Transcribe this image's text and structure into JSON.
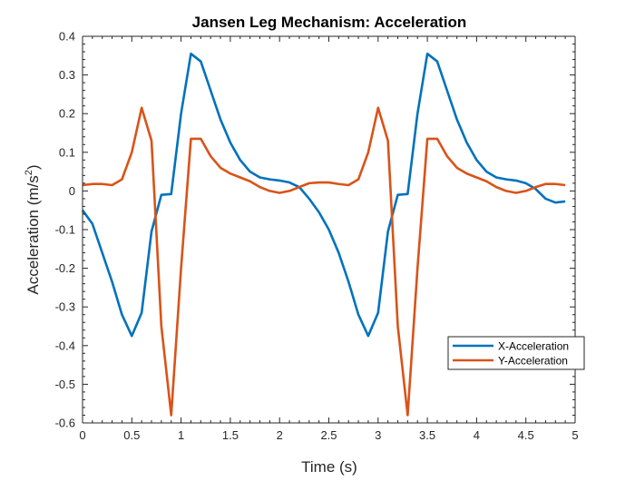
{
  "chart_data": {
    "type": "line",
    "title": "Jansen Leg Mechanism: Acceleration",
    "xlabel": "Time (s)",
    "ylabel": "Acceleration (m/s²)",
    "ylabel_main": "Acceleration (m/s",
    "ylabel_sup": "2",
    "ylabel_end": ")",
    "xlim": [
      0,
      5
    ],
    "ylim": [
      -0.6,
      0.4
    ],
    "x_ticks": [
      0,
      0.5,
      1,
      1.5,
      2,
      2.5,
      3,
      3.5,
      4,
      4.5,
      5
    ],
    "x_tick_labels": [
      "0",
      "0.5",
      "1",
      "1.5",
      "2",
      "2.5",
      "3",
      "3.5",
      "4",
      "4.5",
      "5"
    ],
    "y_ticks": [
      0.4,
      0.3,
      0.2,
      0.1,
      0,
      -0.1,
      -0.2,
      -0.3,
      -0.4,
      -0.5,
      -0.6
    ],
    "y_tick_labels": [
      "0.4",
      "0.3",
      "0.2",
      "0.1",
      "0",
      "-0.1",
      "-0.2",
      "-0.3",
      "-0.4",
      "-0.5",
      "-0.6"
    ],
    "grid": false,
    "legend_position": "lower-right",
    "series": [
      {
        "name": "X-Acceleration",
        "color": "#0072BD",
        "x": [
          0,
          0.1,
          0.2,
          0.3,
          0.4,
          0.5,
          0.6,
          0.7,
          0.8,
          0.9,
          1.0,
          1.1,
          1.2,
          1.3,
          1.4,
          1.5,
          1.6,
          1.7,
          1.8,
          1.9,
          2.0,
          2.1,
          2.2,
          2.3,
          2.4,
          2.5,
          2.6,
          2.7,
          2.8,
          2.9,
          3.0,
          3.1,
          3.2,
          3.3,
          3.4,
          3.5,
          3.6,
          3.7,
          3.8,
          3.9,
          4.0,
          4.1,
          4.2,
          4.3,
          4.4,
          4.5,
          4.6,
          4.7,
          4.8,
          4.9
        ],
        "y": [
          -0.05,
          -0.085,
          -0.16,
          -0.235,
          -0.32,
          -0.375,
          -0.315,
          -0.105,
          -0.01,
          -0.008,
          0.2,
          0.355,
          0.335,
          0.26,
          0.185,
          0.125,
          0.08,
          0.05,
          0.035,
          0.03,
          0.027,
          0.022,
          0.01,
          -0.02,
          -0.055,
          -0.1,
          -0.16,
          -0.235,
          -0.32,
          -0.375,
          -0.315,
          -0.105,
          -0.01,
          -0.008,
          0.2,
          0.355,
          0.335,
          0.26,
          0.185,
          0.125,
          0.08,
          0.05,
          0.035,
          0.03,
          0.027,
          0.02,
          0.005,
          -0.02,
          -0.03,
          -0.027
        ]
      },
      {
        "name": "Y-Acceleration",
        "color": "#D95319",
        "x": [
          0,
          0.1,
          0.2,
          0.3,
          0.4,
          0.5,
          0.6,
          0.7,
          0.8,
          0.9,
          1.0,
          1.1,
          1.2,
          1.3,
          1.4,
          1.5,
          1.6,
          1.7,
          1.8,
          1.9,
          2.0,
          2.1,
          2.2,
          2.3,
          2.4,
          2.5,
          2.6,
          2.7,
          2.8,
          2.9,
          3.0,
          3.1,
          3.2,
          3.3,
          3.4,
          3.5,
          3.6,
          3.7,
          3.8,
          3.9,
          4.0,
          4.1,
          4.2,
          4.3,
          4.4,
          4.5,
          4.6,
          4.7,
          4.8,
          4.9
        ],
        "y": [
          0.015,
          0.018,
          0.018,
          0.015,
          0.03,
          0.1,
          0.215,
          0.13,
          -0.35,
          -0.58,
          -0.2,
          0.135,
          0.135,
          0.09,
          0.06,
          0.045,
          0.035,
          0.025,
          0.01,
          0.0,
          -0.005,
          0.0,
          0.01,
          0.02,
          0.022,
          0.022,
          0.018,
          0.015,
          0.03,
          0.1,
          0.215,
          0.13,
          -0.35,
          -0.58,
          -0.2,
          0.135,
          0.135,
          0.09,
          0.06,
          0.045,
          0.035,
          0.025,
          0.01,
          0.0,
          -0.005,
          0.0,
          0.01,
          0.018,
          0.018,
          0.015
        ]
      }
    ]
  }
}
